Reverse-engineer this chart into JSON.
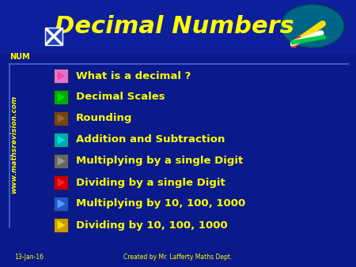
{
  "bg_color": "#0a1a8a",
  "title": "Decimal Numbers",
  "title_color": "#ffff00",
  "title_fontsize": 22,
  "num_label": "NUM",
  "num_color": "#ffff00",
  "watermark": "www.mathsrevision.com",
  "watermark_color": "#ffff00",
  "footer_left": "13-Jan-16",
  "footer_right": "Created by Mr. Lafferty Maths Dept.",
  "footer_color": "#ffff00",
  "items": [
    {
      "text": "What is a decimal ?",
      "tri_color": "#ff44aa",
      "sq_color": "#dd77cc"
    },
    {
      "text": "Decimal Scales",
      "tri_color": "#00dd00",
      "sq_color": "#00aa00"
    },
    {
      "text": "Rounding",
      "tri_color": "#996633",
      "sq_color": "#774411"
    },
    {
      "text": "Addition and Subtraction",
      "tri_color": "#00dddd",
      "sq_color": "#00aaaa"
    },
    {
      "text": "Multiplying by a single Digit",
      "tri_color": "#999999",
      "sq_color": "#666666"
    },
    {
      "text": "Dividing by a single Digit",
      "tri_color": "#ff2222",
      "sq_color": "#cc0000"
    },
    {
      "text": "Multiplying by 10, 100, 1000",
      "tri_color": "#5599ff",
      "sq_color": "#2255cc"
    },
    {
      "text": "Dividing by 10, 100, 1000",
      "tri_color": "#ffdd00",
      "sq_color": "#cc9900"
    }
  ],
  "item_text_color": "#ffff00",
  "item_fontsize": 9.5
}
